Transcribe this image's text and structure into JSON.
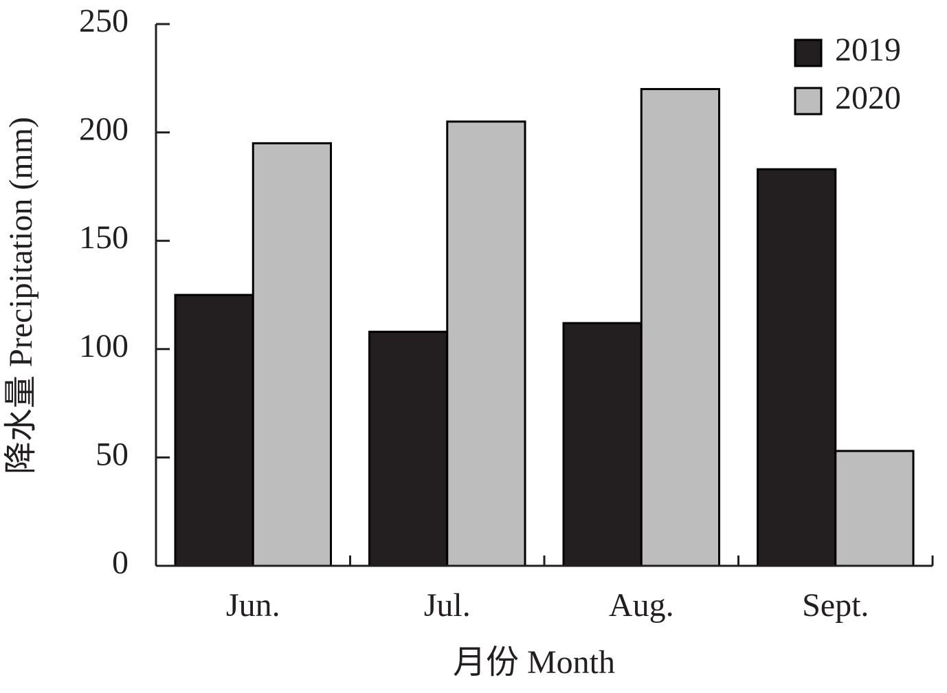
{
  "chart_data": {
    "type": "bar",
    "xlabel": "月份 Month",
    "ylabel": "降水量 Precipitation (mm)",
    "categories": [
      "Jun.",
      "Jul.",
      "Aug.",
      "Sept."
    ],
    "series": [
      {
        "name": "2019",
        "color": "#231f20",
        "values": [
          125,
          108,
          112,
          183
        ]
      },
      {
        "name": "2020",
        "color": "#bdbdbd",
        "values": [
          195,
          205,
          220,
          53
        ]
      }
    ],
    "ylim": [
      0,
      250
    ],
    "yticks": [
      0,
      50,
      100,
      150,
      200,
      250
    ],
    "legend": "upper-right",
    "grid": false
  }
}
